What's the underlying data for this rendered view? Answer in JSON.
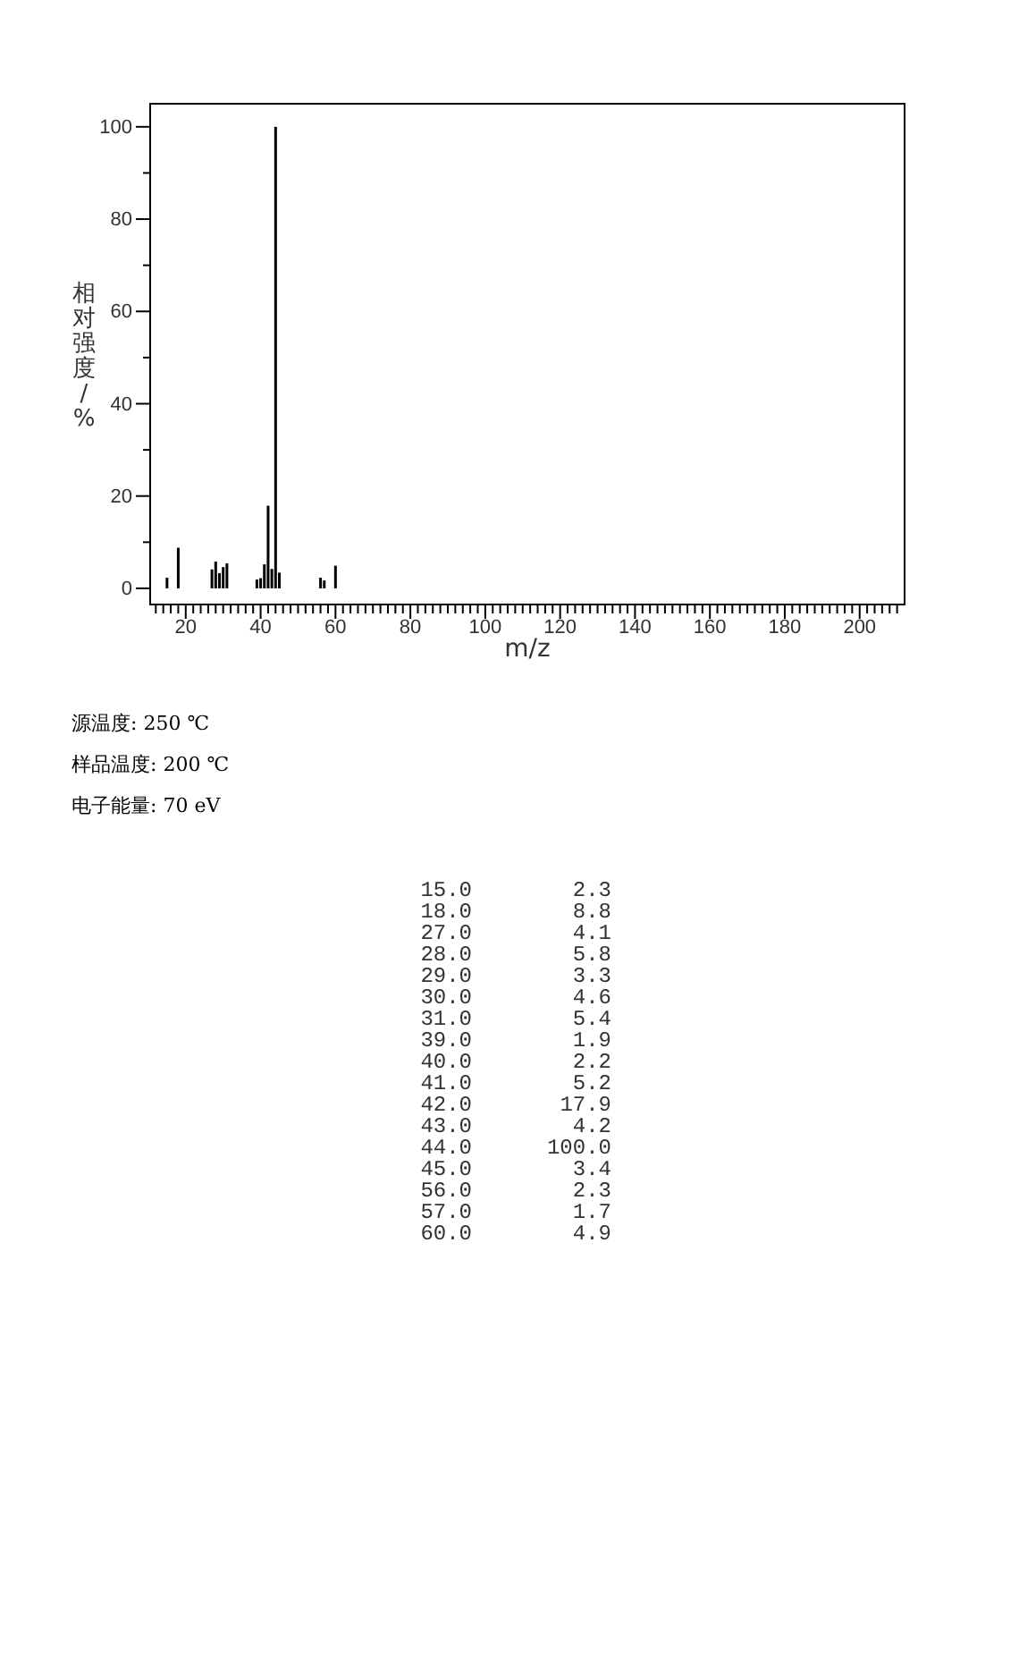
{
  "chart_data": [
    {
      "type": "bar",
      "xlabel": "m/z",
      "ylabel": "相对强度/%",
      "x": [
        15,
        18,
        27,
        28,
        29,
        30,
        31,
        39,
        40,
        41,
        42,
        43,
        44,
        45,
        56,
        57,
        60
      ],
      "values": [
        2.3,
        8.8,
        4.1,
        5.8,
        3.3,
        4.6,
        5.4,
        1.9,
        2.2,
        5.2,
        17.9,
        4.2,
        100.0,
        3.4,
        2.3,
        1.7,
        4.9
      ],
      "color": "#000000",
      "xlim": [
        10.5,
        212
      ],
      "ylim": [
        -3.5,
        105
      ],
      "xticks": [
        {
          "value": 12,
          "label": null
        },
        {
          "value": 14,
          "label": null
        },
        {
          "value": 16,
          "label": null
        },
        {
          "value": 18,
          "label": null
        },
        20,
        {
          "value": 22,
          "label": null
        },
        {
          "value": 24,
          "label": null
        },
        {
          "value": 26,
          "label": null
        },
        {
          "value": 28,
          "label": null
        },
        {
          "value": 30,
          "label": null
        },
        {
          "value": 32,
          "label": null
        },
        {
          "value": 34,
          "label": null
        },
        {
          "value": 36,
          "label": null
        },
        {
          "value": 38,
          "label": null
        },
        40,
        {
          "value": 42,
          "label": null
        },
        {
          "value": 44,
          "label": null
        },
        {
          "value": 46,
          "label": null
        },
        {
          "value": 48,
          "label": null
        },
        {
          "value": 50,
          "label": null
        },
        {
          "value": 52,
          "label": null
        },
        {
          "value": 54,
          "label": null
        },
        {
          "value": 56,
          "label": null
        },
        {
          "value": 58,
          "label": null
        },
        60,
        {
          "value": 62,
          "label": null
        },
        {
          "value": 64,
          "label": null
        },
        {
          "value": 66,
          "label": null
        },
        {
          "value": 68,
          "label": null
        },
        {
          "value": 70,
          "label": null
        },
        {
          "value": 72,
          "label": null
        },
        {
          "value": 74,
          "label": null
        },
        {
          "value": 76,
          "label": null
        },
        {
          "value": 78,
          "label": null
        },
        80,
        {
          "value": 82,
          "label": null
        },
        {
          "value": 84,
          "label": null
        },
        {
          "value": 86,
          "label": null
        },
        {
          "value": 88,
          "label": null
        },
        {
          "value": 90,
          "label": null
        },
        {
          "value": 92,
          "label": null
        },
        {
          "value": 94,
          "label": null
        },
        {
          "value": 96,
          "label": null
        },
        {
          "value": 98,
          "label": null
        },
        100,
        {
          "value": 102,
          "label": null
        },
        {
          "value": 104,
          "label": null
        },
        {
          "value": 106,
          "label": null
        },
        {
          "value": 108,
          "label": null
        },
        {
          "value": 110,
          "label": null
        },
        {
          "value": 112,
          "label": null
        },
        {
          "value": 114,
          "label": null
        },
        {
          "value": 116,
          "label": null
        },
        {
          "value": 118,
          "label": null
        },
        120,
        {
          "value": 122,
          "label": null
        },
        {
          "value": 124,
          "label": null
        },
        {
          "value": 126,
          "label": null
        },
        {
          "value": 128,
          "label": null
        },
        {
          "value": 130,
          "label": null
        },
        {
          "value": 132,
          "label": null
        },
        {
          "value": 134,
          "label": null
        },
        {
          "value": 136,
          "label": null
        },
        {
          "value": 138,
          "label": null
        },
        140,
        {
          "value": 142,
          "label": null
        },
        {
          "value": 144,
          "label": null
        },
        {
          "value": 146,
          "label": null
        },
        {
          "value": 148,
          "label": null
        },
        {
          "value": 150,
          "label": null
        },
        {
          "value": 152,
          "label": null
        },
        {
          "value": 154,
          "label": null
        },
        {
          "value": 156,
          "label": null
        },
        {
          "value": 158,
          "label": null
        },
        160,
        {
          "value": 162,
          "label": null
        },
        {
          "value": 164,
          "label": null
        },
        {
          "value": 166,
          "label": null
        },
        {
          "value": 168,
          "label": null
        },
        {
          "value": 170,
          "label": null
        },
        {
          "value": 172,
          "label": null
        },
        {
          "value": 174,
          "label": null
        },
        {
          "value": 176,
          "label": null
        },
        {
          "value": 178,
          "label": null
        },
        180,
        {
          "value": 182,
          "label": null
        },
        {
          "value": 184,
          "label": null
        },
        {
          "value": 186,
          "label": null
        },
        {
          "value": 188,
          "label": null
        },
        {
          "value": 190,
          "label": null
        },
        {
          "value": 192,
          "label": null
        },
        {
          "value": 194,
          "label": null
        },
        {
          "value": 196,
          "label": null
        },
        {
          "value": 198,
          "label": null
        },
        200,
        {
          "value": 202,
          "label": null
        },
        {
          "value": 204,
          "label": null
        },
        {
          "value": 206,
          "label": null
        },
        {
          "value": 208,
          "label": null
        },
        {
          "value": 210,
          "label": null
        }
      ],
      "yticks": [
        0,
        {
          "value": 10,
          "label": null
        },
        20,
        {
          "value": 30,
          "label": null
        },
        40,
        {
          "value": 50,
          "label": null
        },
        60,
        {
          "value": 70,
          "label": null
        },
        80,
        {
          "value": 90,
          "label": null
        },
        100
      ],
      "annotations": [
        "源温度: 250 ℃",
        "样品温度: 200 ℃",
        "电子能量: 70 eV"
      ]
    },
    {
      "type": "other",
      "annotations": [
        "15.0",
        "2.3",
        "18.0",
        "8.8",
        "27.0",
        "4.1",
        "28.0",
        "5.8",
        "29.0",
        "3.3",
        "30.0",
        "4.6",
        "31.0",
        "5.4",
        "39.0",
        "1.9",
        "40.0",
        "2.2",
        "41.0",
        "5.2",
        "42.0",
        "17.9",
        "43.0",
        "4.2",
        "44.0",
        "100.0",
        "45.0",
        "3.4",
        "56.0",
        "2.3",
        "57.0",
        "1.7",
        "60.0",
        "4.9"
      ]
    }
  ]
}
